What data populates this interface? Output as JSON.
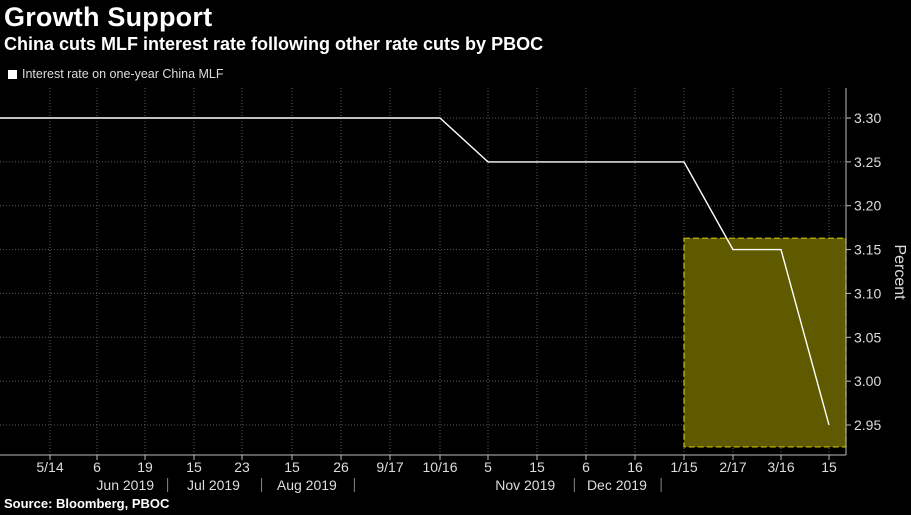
{
  "title": "Growth Support",
  "subtitle": "China cuts MLF interest rate following other rate cuts by PBOC",
  "source": "Source: Bloomberg, PBOC",
  "colors": {
    "background": "#000000",
    "line": "#ffffff",
    "grid": "#5a5a5a",
    "highlight_fill": "#5f5a00",
    "highlight_border": "#c8c000"
  },
  "chart_data": {
    "type": "line",
    "title": "Growth Support",
    "subtitle": "China cuts MLF interest rate following other rate cuts by PBOC",
    "ylabel": "Percent",
    "ylim": [
      2.92,
      3.33
    ],
    "yticks": [
      "3.30",
      "3.25",
      "3.20",
      "3.15",
      "3.10",
      "3.05",
      "3.00",
      "2.95"
    ],
    "grid": true,
    "legend_position": "top-left",
    "series": [
      {
        "name": "Interest rate on one-year China MLF",
        "points": [
          {
            "x": "2019-04-17",
            "y": 3.3
          },
          {
            "x": "2019-10-16",
            "y": 3.3
          },
          {
            "x": "2019-11-05",
            "y": 3.25
          },
          {
            "x": "2020-01-15",
            "y": 3.25
          },
          {
            "x": "2020-02-17",
            "y": 3.15
          },
          {
            "x": "2020-03-16",
            "y": 3.15
          },
          {
            "x": "2020-04-15",
            "y": 2.95
          }
        ]
      }
    ],
    "x_tick_labels": [
      "5/14",
      "6",
      "19",
      "15",
      "23",
      "15",
      "26",
      "9/17",
      "10/16",
      "5",
      "15",
      "6",
      "16",
      "1/15",
      "2/17",
      "3/16",
      "15"
    ],
    "x_tick_dates": [
      "2019-05-14",
      "2019-06-06",
      "2019-06-19",
      "2019-07-15",
      "2019-07-23",
      "2019-08-15",
      "2019-08-26",
      "2019-09-17",
      "2019-10-16",
      "2019-11-05",
      "2019-11-15",
      "2019-12-06",
      "2019-12-16",
      "2020-01-15",
      "2020-02-17",
      "2020-03-16",
      "2020-04-15"
    ],
    "x_period_labels": [
      "Jun 2019",
      "Jul 2019",
      "Aug 2019",
      "Nov 2019",
      "Dec 2019"
    ],
    "highlight": {
      "x_from": "2020-01-15",
      "x_to": "2020-04-24",
      "y_from": 2.925,
      "y_to": 3.163
    }
  }
}
